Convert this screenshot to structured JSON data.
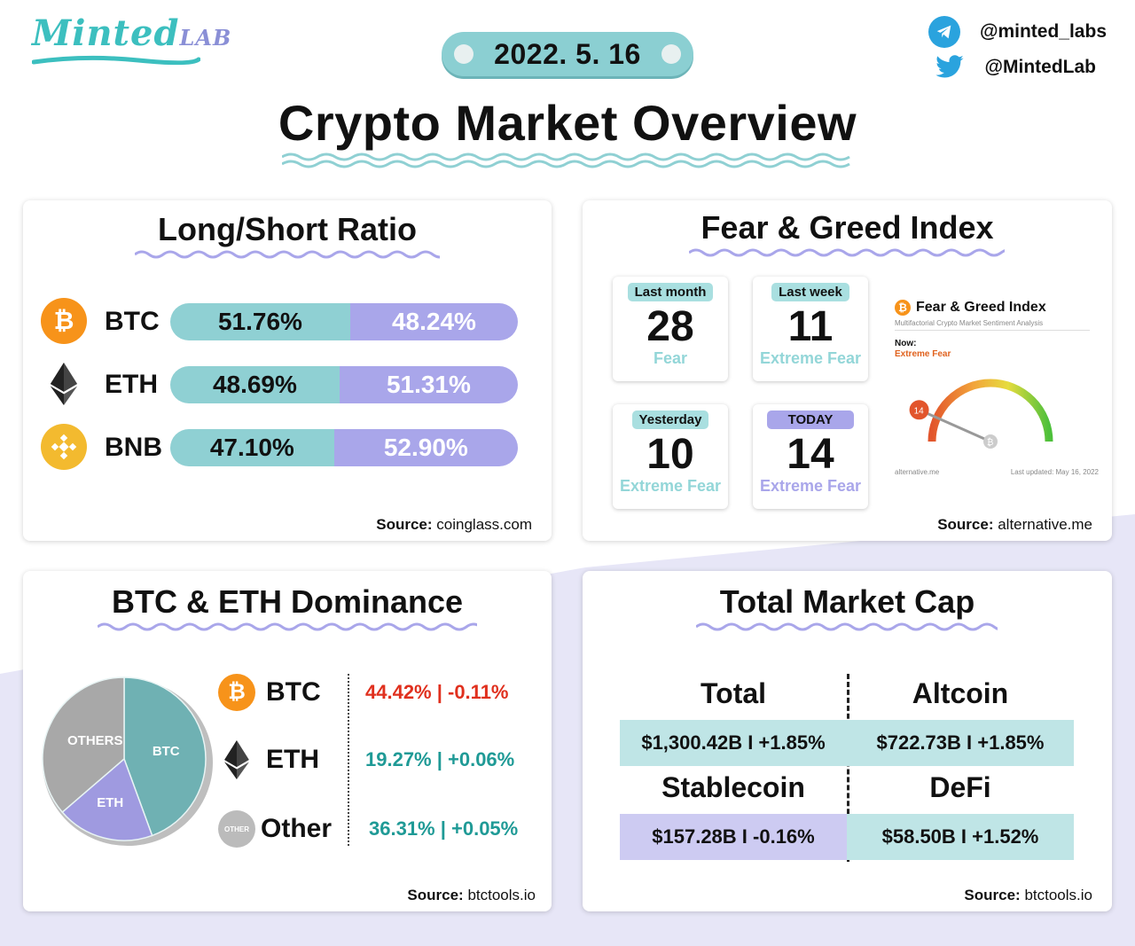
{
  "brand": {
    "logo_main": "Minted",
    "logo_sub": "LAB"
  },
  "date": "2022. 5. 16",
  "social": {
    "telegram": "@minted_labs",
    "twitter": "@MintedLab"
  },
  "title": "Crypto Market Overview",
  "long_short": {
    "title": "Long/Short Ratio",
    "rows": [
      {
        "coin": "BTC",
        "long": "51.76%",
        "short": "48.24%",
        "long_pct": 51.76,
        "icon": "bitcoin-icon",
        "color": "#f7931a"
      },
      {
        "coin": "ETH",
        "long": "48.69%",
        "short": "51.31%",
        "long_pct": 48.69,
        "icon": "ethereum-icon",
        "color": "#333333"
      },
      {
        "coin": "BNB",
        "long": "47.10%",
        "short": "52.90%",
        "long_pct": 47.1,
        "icon": "bnb-icon",
        "color": "#f3ba2f"
      }
    ],
    "source_label": "Source:",
    "source": "coinglass.com"
  },
  "fear_greed": {
    "title": "Fear & Greed Index",
    "boxes": [
      {
        "tag": "Last month",
        "value": "28",
        "label": "Fear"
      },
      {
        "tag": "Last week",
        "value": "11",
        "label": "Extreme Fear"
      },
      {
        "tag": "Yesterday",
        "value": "10",
        "label": "Extreme Fear"
      },
      {
        "tag": "TODAY",
        "value": "14",
        "label": "Extreme Fear"
      }
    ],
    "widget": {
      "title": "Fear & Greed Index",
      "subtitle": "Multifactorial Crypto Market Sentiment Analysis",
      "now_label": "Now:",
      "now_value": "Extreme Fear",
      "needle_value": "14",
      "needle_fraction": 0.14,
      "footer_left": "alternative.me",
      "footer_right": "Last updated: May 16, 2022"
    },
    "source_label": "Source:",
    "source": "alternative.me"
  },
  "dominance": {
    "title": "BTC & ETH Dominance",
    "pie_labels": {
      "btc": "BTC",
      "eth": "ETH",
      "other": "OTHERS"
    },
    "rows": [
      {
        "coin": "BTC",
        "value": "44.42% | -0.11%",
        "color": "#e0301e",
        "icon": "bitcoin-icon"
      },
      {
        "coin": "ETH",
        "value": "19.27% | +0.06%",
        "color": "#1f9a96",
        "icon": "ethereum-icon"
      },
      {
        "coin": "Other",
        "value": "36.31% | +0.05%",
        "color": "#1f9a96",
        "icon": "other-icon",
        "icon_text": "OTHER"
      }
    ],
    "source_label": "Source:",
    "source": "btctools.io"
  },
  "market_cap": {
    "title": "Total Market Cap",
    "total_head": "Total",
    "total_value": "$1,300.42B I +1.85%",
    "altcoin_head": "Altcoin",
    "altcoin_value": "$722.73B I +1.85%",
    "stablecoin_head": "Stablecoin",
    "stablecoin_value": "$157.28B I -0.16%",
    "defi_head": "DeFi",
    "defi_value": "$58.50B I +1.52%",
    "source_label": "Source:",
    "source": "btctools.io"
  },
  "chart_data": {
    "type": "pie",
    "title": "BTC & ETH Dominance",
    "categories": [
      "BTC",
      "ETH",
      "OTHERS"
    ],
    "values": [
      44.42,
      19.27,
      36.31
    ]
  }
}
